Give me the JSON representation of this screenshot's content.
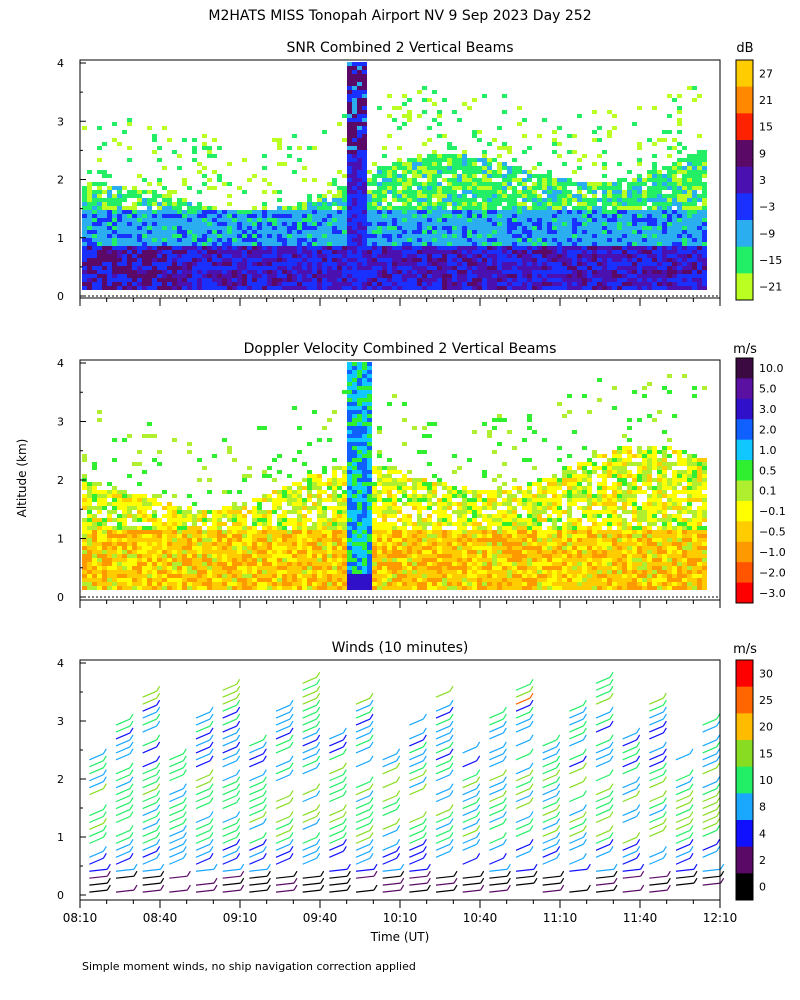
{
  "title": "M2HATS MISS Tonopah Airport NV   9 Sep 2023 Day 252",
  "y_axis_label": "Altitude (km)",
  "x_axis_label": "Time (UT)",
  "footnote": "Simple moment winds, no ship navigation correction applied",
  "chart_data": [
    {
      "id": "snr",
      "type": "heatmap",
      "title": "SNR Combined 2 Vertical Beams",
      "ylabel": "Altitude (km)",
      "ylim": [
        0,
        4
      ],
      "yticks": [
        "0",
        "1",
        "2",
        "3",
        "4"
      ],
      "xlim_minutes": [
        490,
        730
      ],
      "colorbar": {
        "unit": "dB",
        "labels": [
          "27",
          "21",
          "15",
          "9",
          "3",
          "−3",
          "−9",
          "−15",
          "−21"
        ],
        "colors": [
          "#ffcc00",
          "#ff8800",
          "#ff2200",
          "#5a0a66",
          "#4a10b0",
          "#1a30ff",
          "#2aaef0",
          "#22ee66",
          "#bbff22"
        ]
      }
    },
    {
      "id": "velocity",
      "type": "heatmap",
      "title": "Doppler Velocity Combined 2 Vertical Beams",
      "ylabel": "Altitude (km)",
      "ylim": [
        0,
        4
      ],
      "yticks": [
        "0",
        "1",
        "2",
        "3",
        "4"
      ],
      "xlim_minutes": [
        490,
        730
      ],
      "colorbar": {
        "unit": "m/s",
        "labels": [
          "10.0",
          "5.0",
          "3.0",
          "2.0",
          "1.0",
          "0.5",
          "0.1",
          "−0.1",
          "−0.5",
          "−1.0",
          "−2.0",
          "−3.0"
        ],
        "colors": [
          "#3a0a40",
          "#5a10a0",
          "#3010c8",
          "#1060ff",
          "#10c8ff",
          "#30ee30",
          "#b0ee30",
          "#ffff00",
          "#ffcc00",
          "#ff9900",
          "#ff5500",
          "#ff0000"
        ]
      }
    },
    {
      "id": "winds",
      "type": "scatter",
      "title": "Winds (10 minutes)",
      "ylabel": "Altitude (km)",
      "ylim": [
        0,
        4
      ],
      "yticks": [
        "0",
        "1",
        "2",
        "3",
        "4"
      ],
      "xlabel": "Time (UT)",
      "xlim_minutes": [
        490,
        730
      ],
      "xticks": [
        "08:10",
        "08:40",
        "09:10",
        "09:40",
        "10:10",
        "10:40",
        "11:10",
        "11:40",
        "12:10"
      ],
      "colorbar": {
        "unit": "m/s",
        "labels": [
          "30",
          "25",
          "20",
          "15",
          "10",
          "8",
          "4",
          "2",
          "0"
        ],
        "colors": [
          "#ff0000",
          "#ff6600",
          "#ffbb00",
          "#88dd22",
          "#22ee66",
          "#1aa8ff",
          "#1010ff",
          "#5a0a66",
          "#000000"
        ]
      }
    }
  ]
}
